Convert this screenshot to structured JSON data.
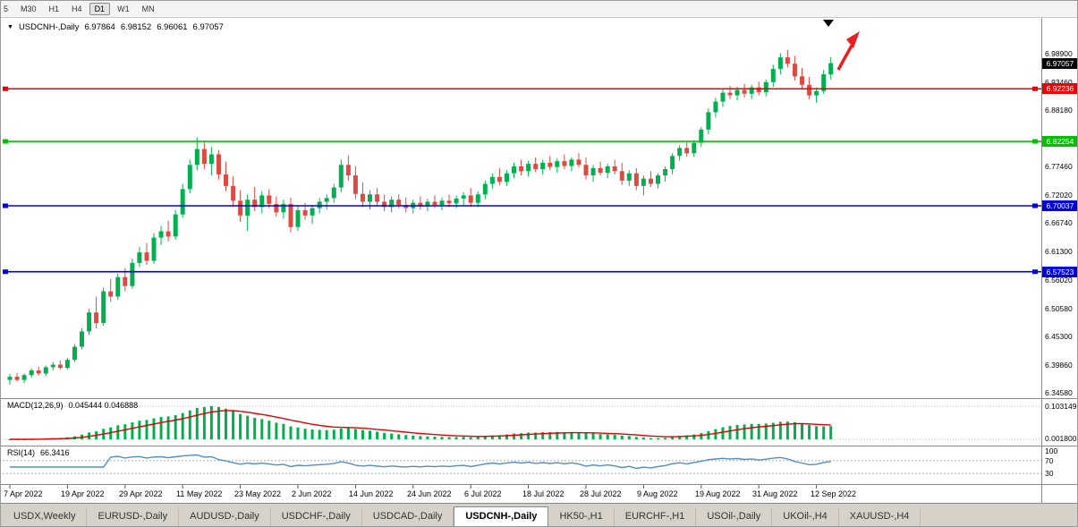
{
  "toolbar": {
    "buttons": [
      {
        "label": "5",
        "active": false
      },
      {
        "label": "M30",
        "active": false
      },
      {
        "label": "H1",
        "active": false
      },
      {
        "label": "H4",
        "active": false
      },
      {
        "label": "D1",
        "active": true
      },
      {
        "label": "W1",
        "active": false
      },
      {
        "label": "MN",
        "active": false
      }
    ]
  },
  "icons": {
    "dropdown": "▼"
  },
  "chart": {
    "title": "USDCNH-,Daily",
    "open": "6.97864",
    "high": "6.98152",
    "low": "6.96061",
    "close": "6.97057"
  },
  "indicators": {
    "macd": {
      "label": "MACD(12,26,9)",
      "values_text": "0.045444 0.046888",
      "axis_labels": [
        "0.103149",
        "0.001800"
      ],
      "histogram_color": "#00b050",
      "signal_color": "#e00000"
    },
    "rsi": {
      "label": "RSI(14)",
      "value_text": "66.3416",
      "axis_labels": [
        "100",
        "70",
        "30"
      ],
      "levels": [
        70,
        30
      ],
      "line_color": "#4f8fc0"
    }
  },
  "chart_data": {
    "type": "candlestick",
    "title": "USDCNH-,Daily",
    "x_labels": [
      "7 Apr 2022",
      "19 Apr 2022",
      "29 Apr 2022",
      "11 May 2022",
      "23 May 2022",
      "2 Jun 2022",
      "14 Jun 2022",
      "24 Jun 2022",
      "6 Jul 2022",
      "18 Jul 2022",
      "28 Jul 2022",
      "9 Aug 2022",
      "19 Aug 2022",
      "31 Aug 2022",
      "12 Sep 2022"
    ],
    "label_every_n_candles": 8,
    "y_ticks": [
      "6.98900",
      "6.93460",
      "6.88180",
      "6.77460",
      "6.72020",
      "6.66740",
      "6.61300",
      "6.56020",
      "6.50580",
      "6.45300",
      "6.39860",
      "6.34580"
    ],
    "y_range": [
      6.3458,
      6.989
    ],
    "up_color": "#00b050",
    "down_color": "#dd4a42",
    "candles": [
      [
        6.37,
        6.381,
        6.361,
        6.376
      ],
      [
        6.376,
        6.383,
        6.367,
        6.37
      ],
      [
        6.37,
        6.382,
        6.364,
        6.379
      ],
      [
        6.379,
        6.392,
        6.374,
        6.388
      ],
      [
        6.388,
        6.395,
        6.378,
        6.382
      ],
      [
        6.382,
        6.397,
        6.377,
        6.394
      ],
      [
        6.394,
        6.404,
        6.388,
        6.399
      ],
      [
        6.399,
        6.407,
        6.389,
        6.393
      ],
      [
        6.393,
        6.412,
        6.389,
        6.408
      ],
      [
        6.408,
        6.438,
        6.404,
        6.433
      ],
      [
        6.433,
        6.468,
        6.428,
        6.462
      ],
      [
        6.462,
        6.505,
        6.455,
        6.498
      ],
      [
        6.498,
        6.528,
        6.468,
        6.478
      ],
      [
        6.478,
        6.545,
        6.473,
        6.538
      ],
      [
        6.538,
        6.562,
        6.518,
        6.528
      ],
      [
        6.528,
        6.572,
        6.522,
        6.565
      ],
      [
        6.565,
        6.582,
        6.538,
        6.548
      ],
      [
        6.548,
        6.6,
        6.543,
        6.592
      ],
      [
        6.592,
        6.622,
        6.584,
        6.612
      ],
      [
        6.612,
        6.63,
        6.588,
        6.596
      ],
      [
        6.596,
        6.648,
        6.59,
        6.64
      ],
      [
        6.64,
        6.662,
        6.626,
        6.652
      ],
      [
        6.652,
        6.672,
        6.633,
        6.642
      ],
      [
        6.642,
        6.692,
        6.636,
        6.684
      ],
      [
        6.684,
        6.742,
        6.678,
        6.732
      ],
      [
        6.732,
        6.788,
        6.724,
        6.778
      ],
      [
        6.778,
        6.83,
        6.768,
        6.808
      ],
      [
        6.808,
        6.822,
        6.77,
        6.78
      ],
      [
        6.78,
        6.812,
        6.758,
        6.798
      ],
      [
        6.798,
        6.806,
        6.75,
        6.76
      ],
      [
        6.76,
        6.784,
        6.728,
        6.738
      ],
      [
        6.738,
        6.756,
        6.698,
        6.71
      ],
      [
        6.71,
        6.73,
        6.67,
        6.682
      ],
      [
        6.682,
        6.722,
        6.653,
        6.712
      ],
      [
        6.712,
        6.736,
        6.69,
        6.698
      ],
      [
        6.698,
        6.728,
        6.686,
        6.72
      ],
      [
        6.72,
        6.732,
        6.696,
        6.704
      ],
      [
        6.704,
        6.718,
        6.68,
        6.688
      ],
      [
        6.688,
        6.712,
        6.676,
        6.704
      ],
      [
        6.704,
        6.716,
        6.65,
        6.66
      ],
      [
        6.66,
        6.7,
        6.653,
        6.692
      ],
      [
        6.692,
        6.706,
        6.674,
        6.682
      ],
      [
        6.682,
        6.702,
        6.666,
        6.696
      ],
      [
        6.696,
        6.715,
        6.686,
        6.708
      ],
      [
        6.708,
        6.722,
        6.693,
        6.715
      ],
      [
        6.715,
        6.742,
        6.706,
        6.735
      ],
      [
        6.735,
        6.788,
        6.726,
        6.778
      ],
      [
        6.778,
        6.796,
        6.748,
        6.758
      ],
      [
        6.758,
        6.775,
        6.713,
        6.723
      ],
      [
        6.723,
        6.745,
        6.698,
        6.708
      ],
      [
        6.708,
        6.73,
        6.693,
        6.722
      ],
      [
        6.722,
        6.734,
        6.7,
        6.708
      ],
      [
        6.708,
        6.722,
        6.69,
        6.698
      ],
      [
        6.698,
        6.718,
        6.688,
        6.712
      ],
      [
        6.712,
        6.722,
        6.696,
        6.702
      ],
      [
        6.702,
        6.716,
        6.688,
        6.696
      ],
      [
        6.696,
        6.712,
        6.686,
        6.706
      ],
      [
        6.706,
        6.718,
        6.693,
        6.699
      ],
      [
        6.699,
        6.714,
        6.69,
        6.708
      ],
      [
        6.708,
        6.72,
        6.696,
        6.702
      ],
      [
        6.702,
        6.716,
        6.692,
        6.71
      ],
      [
        6.71,
        6.722,
        6.698,
        6.705
      ],
      [
        6.705,
        6.72,
        6.696,
        6.714
      ],
      [
        6.714,
        6.726,
        6.702,
        6.72
      ],
      [
        6.72,
        6.734,
        6.698,
        6.706
      ],
      [
        6.706,
        6.728,
        6.698,
        6.722
      ],
      [
        6.722,
        6.748,
        6.713,
        6.742
      ],
      [
        6.742,
        6.762,
        6.733,
        6.755
      ],
      [
        6.755,
        6.772,
        6.74,
        6.746
      ],
      [
        6.746,
        6.768,
        6.738,
        6.762
      ],
      [
        6.762,
        6.782,
        6.753,
        6.775
      ],
      [
        6.775,
        6.788,
        6.758,
        6.766
      ],
      [
        6.766,
        6.786,
        6.756,
        6.78
      ],
      [
        6.78,
        6.792,
        6.764,
        6.77
      ],
      [
        6.77,
        6.788,
        6.76,
        6.782
      ],
      [
        6.782,
        6.795,
        6.768,
        6.774
      ],
      [
        6.774,
        6.79,
        6.763,
        6.785
      ],
      [
        6.785,
        6.798,
        6.77,
        6.776
      ],
      [
        6.776,
        6.792,
        6.766,
        6.788
      ],
      [
        6.788,
        6.8,
        6.773,
        6.778
      ],
      [
        6.778,
        6.792,
        6.75,
        6.758
      ],
      [
        6.758,
        6.778,
        6.746,
        6.772
      ],
      [
        6.772,
        6.784,
        6.758,
        6.763
      ],
      [
        6.763,
        6.78,
        6.753,
        6.775
      ],
      [
        6.775,
        6.788,
        6.76,
        6.766
      ],
      [
        6.766,
        6.782,
        6.74,
        6.748
      ],
      [
        6.748,
        6.768,
        6.738,
        6.762
      ],
      [
        6.762,
        6.772,
        6.73,
        6.738
      ],
      [
        6.738,
        6.758,
        6.72,
        6.752
      ],
      [
        6.752,
        6.766,
        6.736,
        6.742
      ],
      [
        6.742,
        6.762,
        6.733,
        6.758
      ],
      [
        6.758,
        6.775,
        6.746,
        6.77
      ],
      [
        6.77,
        6.8,
        6.76,
        6.795
      ],
      [
        6.795,
        6.815,
        6.786,
        6.81
      ],
      [
        6.81,
        6.822,
        6.793,
        6.8
      ],
      [
        6.8,
        6.825,
        6.793,
        6.82
      ],
      [
        6.82,
        6.85,
        6.812,
        6.845
      ],
      [
        6.845,
        6.885,
        6.836,
        6.878
      ],
      [
        6.878,
        6.905,
        6.868,
        6.898
      ],
      [
        6.898,
        6.922,
        6.888,
        6.915
      ],
      [
        6.915,
        6.928,
        6.903,
        6.91
      ],
      [
        6.91,
        6.926,
        6.9,
        6.92
      ],
      [
        6.92,
        6.932,
        6.906,
        6.913
      ],
      [
        6.913,
        6.93,
        6.903,
        6.925
      ],
      [
        6.925,
        6.936,
        6.91,
        6.916
      ],
      [
        6.916,
        6.94,
        6.908,
        6.935
      ],
      [
        6.935,
        6.968,
        6.926,
        6.96
      ],
      [
        6.96,
        6.99,
        6.95,
        6.982
      ],
      [
        6.982,
        6.996,
        6.963,
        6.97
      ],
      [
        6.97,
        6.985,
        6.938,
        6.946
      ],
      [
        6.946,
        6.962,
        6.923,
        6.93
      ],
      [
        6.93,
        6.945,
        6.903,
        6.91
      ],
      [
        6.91,
        6.925,
        6.896,
        6.918
      ],
      [
        6.918,
        6.958,
        6.913,
        6.95
      ],
      [
        6.95,
        6.982,
        6.94,
        6.971
      ]
    ],
    "hlines": [
      {
        "value": 6.92236,
        "label": "6.92236",
        "color": "#ee0000"
      },
      {
        "value": 6.82254,
        "label": "6.82254",
        "color": "#00c000"
      },
      {
        "value": 6.70037,
        "label": "6.70037",
        "color": "#0000dd"
      },
      {
        "value": 6.57523,
        "label": "6.57523",
        "color": "#0000dd"
      }
    ],
    "price_tag": {
      "value": 6.97057,
      "label": "6.97057",
      "color": "#000000"
    },
    "annotations": [
      {
        "type": "arrow-up-right",
        "color": "#e82020"
      },
      {
        "type": "down-triangle-marker",
        "color": "#000000"
      }
    ]
  },
  "tabs": {
    "active_index": 5,
    "items": [
      "USDX,Weekly",
      "EURUSD-,Daily",
      "AUDUSD-,Daily",
      "USDCHF-,Daily",
      "USDCAD-,Daily",
      "USDCNH-,Daily",
      "HK50-,H1",
      "EURCHF-,H1",
      "USOil-,Daily",
      "UKOil-,H4",
      "XAUUSD-,H4"
    ]
  }
}
